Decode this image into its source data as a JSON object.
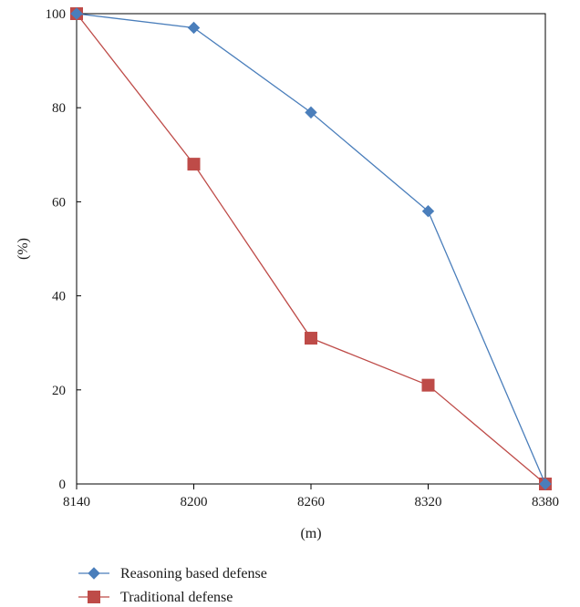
{
  "chart_data": {
    "type": "line",
    "xlabel": "(m)",
    "ylabel": "(%)",
    "x": [
      8140,
      8200,
      8260,
      8320,
      8380
    ],
    "xlim": [
      8140,
      8380
    ],
    "ylim": [
      0,
      100
    ],
    "xticks": [
      "8140",
      "8200",
      "8260",
      "8320",
      "8380"
    ],
    "yticks": [
      "0",
      "20",
      "40",
      "60",
      "80",
      "100"
    ],
    "grid": false,
    "legend_position": "bottom-left",
    "series": [
      {
        "name": "Reasoning based defense",
        "values": [
          100,
          97,
          79,
          58,
          0
        ],
        "color": "#4a7ebb",
        "marker": "diamond"
      },
      {
        "name": "Traditional defense",
        "values": [
          100,
          68,
          31,
          21,
          0
        ],
        "color": "#be4b48",
        "marker": "square"
      }
    ]
  }
}
